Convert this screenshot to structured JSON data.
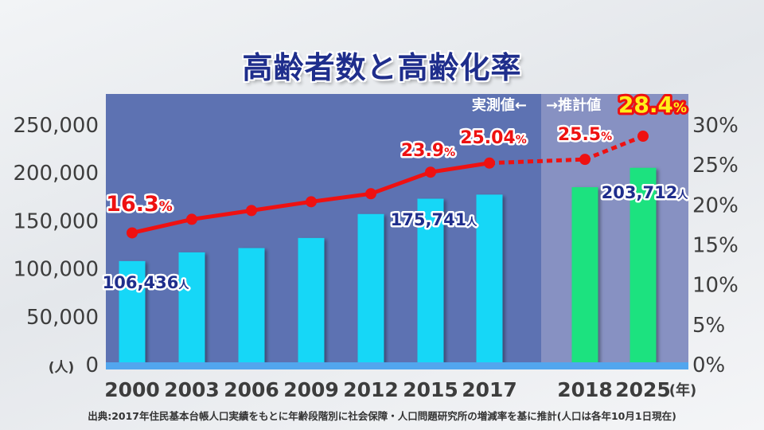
{
  "title": "高齢者数と高齢化率",
  "source_note": "出典:2017年住民基本台帳人口実績をもとに年齢段階別に社会保障・人口問題研究所の増減率を基に推計(人口は各年10月1日現在)",
  "actual_label": "実測値←",
  "estimate_label": "→推計値",
  "colors": {
    "panel_actual": "#5d72b2",
    "panel_estimate": "#8791c2",
    "bar_actual": "#19d7f7",
    "bar_estimate": "#1ee27f",
    "line": "#ee1111",
    "axis_band": "#52a6ee",
    "title": "#1f2e8c",
    "value_label": "#1f2e8c"
  },
  "chart_data": {
    "type": "bar",
    "categories": [
      "2000",
      "2003",
      "2006",
      "2009",
      "2012",
      "2015",
      "2017",
      "2018",
      "2025"
    ],
    "x_unit_label": "(年)",
    "estimate_from_index": 7,
    "series": [
      {
        "axis": "left",
        "chart_type": "bar",
        "values": [
          106436,
          115500,
          120000,
          130500,
          155500,
          171500,
          175741,
          183500,
          203712
        ]
      },
      {
        "axis": "right",
        "chart_type": "line",
        "values": [
          16.3,
          18.0,
          19.1,
          20.2,
          21.2,
          23.9,
          25.04,
          25.5,
          28.4
        ]
      }
    ],
    "left_axis": {
      "unit_label": "(人)",
      "ylim": [
        0,
        250000
      ],
      "ticks": [
        0,
        50000,
        100000,
        150000,
        200000,
        250000
      ],
      "tick_labels": [
        "0",
        "50,000",
        "100,000",
        "150,000",
        "200,000",
        "250,000"
      ]
    },
    "right_axis": {
      "ylim": [
        0,
        30
      ],
      "ticks": [
        0,
        5,
        10,
        15,
        20,
        25,
        30
      ],
      "tick_labels": [
        "0%",
        "5%",
        "10%",
        "15%",
        "20%",
        "25%",
        "30%"
      ]
    },
    "bar_labels": [
      {
        "index": 0,
        "number": "106,436",
        "unit": "人"
      },
      {
        "index": 6,
        "number": "175,741",
        "unit": "人"
      },
      {
        "index": 8,
        "number": "203,712",
        "unit": "人"
      }
    ],
    "rate_labels": [
      {
        "index": 0,
        "number": "16.3",
        "unit": "%"
      },
      {
        "index": 5,
        "number": "23.9",
        "unit": "%"
      },
      {
        "index": 6,
        "number": "25.04",
        "unit": "%"
      },
      {
        "index": 7,
        "number": "25.5",
        "unit": "%"
      },
      {
        "index": 8,
        "number": "28.4",
        "unit": "%",
        "highlight": true
      }
    ]
  }
}
